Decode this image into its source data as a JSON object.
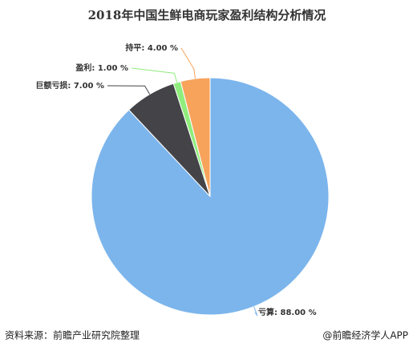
{
  "chart_data": {
    "type": "pie",
    "title": "2018年中国生鲜电商玩家盈利结构分析情况",
    "categories": [
      "亏算",
      "巨额亏损",
      "盈利",
      "持平"
    ],
    "values": [
      88,
      7,
      1,
      4
    ],
    "value_labels": [
      "88.00 %",
      "7.00 %",
      "1.00 %",
      "4.00 %"
    ],
    "colors": [
      "#7cb5ec",
      "#434348",
      "#90ed7d",
      "#f7a35c"
    ]
  },
  "footer": {
    "source": "资料来源：前瞻产业研究院整理",
    "brand": "@前瞻经济学人APP"
  }
}
